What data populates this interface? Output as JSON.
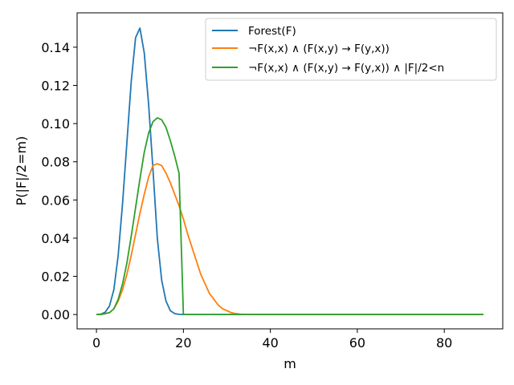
{
  "chart_data": {
    "type": "line",
    "xlabel": "m",
    "ylabel": "P(|F|/2=m)",
    "xlim": [
      -4.45,
      93.45
    ],
    "ylim": [
      -0.0075,
      0.158
    ],
    "xticks": [
      0,
      20,
      40,
      60,
      80
    ],
    "yticks": [
      0.0,
      0.02,
      0.04,
      0.06,
      0.08,
      0.1,
      0.12,
      0.14
    ],
    "xtick_labels": [
      "0",
      "20",
      "40",
      "60",
      "80"
    ],
    "ytick_labels": [
      "0.00",
      "0.02",
      "0.04",
      "0.06",
      "0.08",
      "0.10",
      "0.12",
      "0.14"
    ],
    "grid": false,
    "legend_position": "top-right",
    "series": [
      {
        "name": "Forest(F)",
        "color": "#1f77b4",
        "x": [
          0,
          1,
          2,
          3,
          4,
          5,
          6,
          7,
          8,
          9,
          10,
          11,
          12,
          13,
          14,
          15,
          16,
          17,
          18,
          19,
          20,
          25,
          30,
          40,
          50,
          60,
          70,
          80,
          89
        ],
        "y": [
          0.0,
          0.0002,
          0.0012,
          0.0045,
          0.013,
          0.031,
          0.058,
          0.09,
          0.122,
          0.145,
          0.15,
          0.137,
          0.11,
          0.076,
          0.04,
          0.018,
          0.007,
          0.002,
          0.0005,
          0.0001,
          0.0,
          0.0,
          0.0,
          0.0,
          0.0,
          0.0,
          0.0,
          0.0,
          0.0
        ]
      },
      {
        "name": "¬F(x,x) ∧ (F(x,y) → F(y,x))",
        "color": "#ff7f0e",
        "x": [
          0,
          1,
          2,
          3,
          4,
          5,
          6,
          7,
          8,
          9,
          10,
          11,
          12,
          13,
          14,
          15,
          16,
          17,
          18,
          19,
          20,
          21,
          22,
          23,
          24,
          25,
          26,
          27,
          28,
          29,
          30,
          31,
          32,
          33,
          34,
          35,
          40,
          50,
          60,
          70,
          80,
          89
        ],
        "y": [
          0.0,
          0.0,
          0.0005,
          0.001,
          0.003,
          0.007,
          0.013,
          0.021,
          0.031,
          0.042,
          0.053,
          0.063,
          0.072,
          0.078,
          0.079,
          0.078,
          0.074,
          0.069,
          0.063,
          0.057,
          0.05,
          0.042,
          0.035,
          0.028,
          0.021,
          0.016,
          0.011,
          0.008,
          0.005,
          0.003,
          0.002,
          0.001,
          0.0005,
          0.0002,
          0.0001,
          0.0,
          0.0,
          0.0,
          0.0,
          0.0,
          0.0,
          0.0
        ]
      },
      {
        "name": "¬F(x,x) ∧ (F(x,y) → F(y,x)) ∧ |F|/2<n",
        "color": "#2ca02c",
        "x": [
          0,
          1,
          2,
          3,
          4,
          5,
          6,
          7,
          8,
          9,
          10,
          11,
          12,
          13,
          14,
          15,
          16,
          17,
          18,
          19,
          20,
          21,
          30,
          40,
          50,
          60,
          70,
          80,
          89
        ],
        "y": [
          0.0,
          0.0,
          0.0005,
          0.001,
          0.003,
          0.008,
          0.016,
          0.027,
          0.041,
          0.056,
          0.071,
          0.085,
          0.095,
          0.101,
          0.103,
          0.102,
          0.098,
          0.091,
          0.083,
          0.074,
          0.0,
          0.0,
          0.0,
          0.0,
          0.0,
          0.0,
          0.0,
          0.0,
          0.0
        ]
      }
    ]
  }
}
